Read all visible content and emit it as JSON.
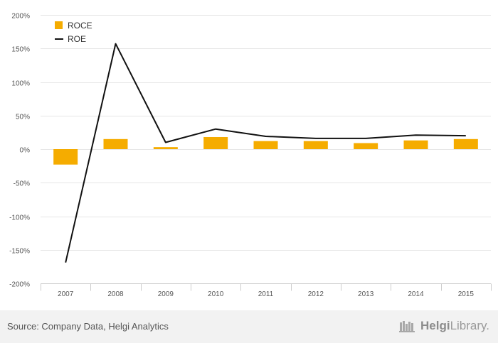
{
  "chart_data": {
    "type": "bar",
    "categories": [
      "2007",
      "2008",
      "2009",
      "2010",
      "2011",
      "2012",
      "2013",
      "2014",
      "2015"
    ],
    "series": [
      {
        "name": "ROCE",
        "type": "bar",
        "color": "#f5ac00",
        "values": [
          -23,
          15,
          3,
          18,
          12,
          12,
          9,
          13,
          15
        ]
      },
      {
        "name": "ROE",
        "type": "line",
        "color": "#111111",
        "values": [
          -169,
          157,
          10,
          30,
          19,
          16,
          16,
          21,
          20
        ]
      }
    ],
    "ylim": [
      -200,
      200
    ],
    "yticks": [
      200,
      150,
      100,
      50,
      0,
      -50,
      -100,
      -150,
      -200
    ],
    "ytick_labels": [
      "200%",
      "150%",
      "100%",
      "50%",
      "0%",
      "-50%",
      "-100%",
      "-150%",
      "-200%"
    ],
    "ylabel": "",
    "xlabel": "",
    "title": "",
    "grid": true,
    "legend_position": "top-left"
  },
  "footer": {
    "source": "Source: Company Data, Helgi Analytics",
    "brand_prefix": "Helgi",
    "brand_suffix": "Library."
  }
}
